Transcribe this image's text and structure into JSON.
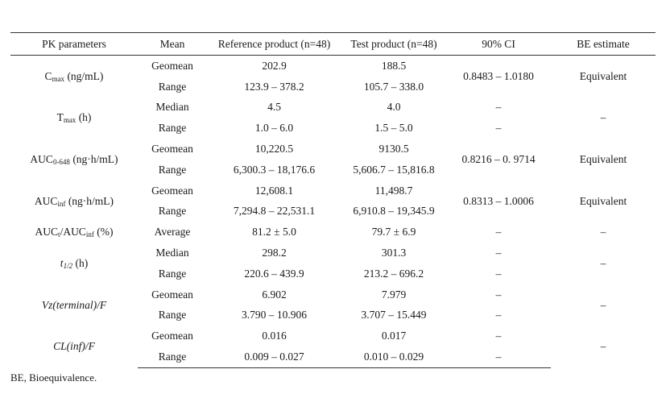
{
  "headers": [
    "PK parameters",
    "Mean",
    "Reference product (n=48)",
    "Test product (n=48)",
    "90% CI",
    "BE estimate"
  ],
  "params": {
    "cmax": {
      "main": "C",
      "sub": "max",
      "unit": " (ng/mL)"
    },
    "tmax": {
      "main": "T",
      "sub": "max",
      "unit": " (h)"
    },
    "auc648": {
      "main": "AUC",
      "sub": "0-648",
      "unit": " (ng·h/mL)"
    },
    "aucinf": {
      "main": "AUC",
      "sub": "inf",
      "unit": " (ng·h/mL)"
    },
    "ratio": {
      "main": "AUC",
      "sub": "t",
      "mid": "/AUC",
      "sub2": "inf",
      "unit": " (%)"
    },
    "thalf": {
      "main": "t",
      "sub": "1/2",
      "unit": " (h)"
    },
    "vz": {
      "label": "Vz(terminal)/F"
    },
    "cl": {
      "label": "CL(inf)/F"
    }
  },
  "rows": {
    "cmax_geo": {
      "mean": "Geomean",
      "ref": "202.9",
      "test": "188.5"
    },
    "cmax_range": {
      "mean": "Range",
      "ref": "123.9 – 378.2",
      "test": "105.7 – 338.0"
    },
    "cmax": {
      "ci": "0.8483 – 1.0180",
      "be": "Equivalent"
    },
    "tmax_med": {
      "mean": "Median",
      "ref": "4.5",
      "test": "4.0",
      "ci": "–"
    },
    "tmax_range": {
      "mean": "Range",
      "ref": "1.0 – 6.0",
      "test": "1.5 – 5.0",
      "ci": "–"
    },
    "tmax": {
      "be": "–"
    },
    "auc648_geo": {
      "mean": "Geomean",
      "ref": "10,220.5",
      "test": "9130.5"
    },
    "auc648_range": {
      "mean": "Range",
      "ref": "6,300.3 – 18,176.6",
      "test": "5,606.7 – 15,816.8"
    },
    "auc648": {
      "ci": "0.8216 – 0. 9714",
      "be": "Equivalent"
    },
    "aucinf_geo": {
      "mean": "Geomean",
      "ref": "12,608.1",
      "test": "11,498.7"
    },
    "aucinf_range": {
      "mean": "Range",
      "ref": "7,294.8 – 22,531.1",
      "test": "6,910.8 – 19,345.9"
    },
    "aucinf": {
      "ci": "0.8313 – 1.0006",
      "be": "Equivalent"
    },
    "ratio": {
      "mean": "Average",
      "ref": "81.2 ± 5.0",
      "test": "79.7 ± 6.9",
      "ci": "–",
      "be": "–"
    },
    "thalf_med": {
      "mean": "Median",
      "ref": "298.2",
      "test": "301.3",
      "ci": "–"
    },
    "thalf_range": {
      "mean": "Range",
      "ref": "220.6 – 439.9",
      "test": "213.2 – 696.2",
      "ci": "–"
    },
    "thalf": {
      "be": "–"
    },
    "vz_geo": {
      "mean": "Geomean",
      "ref": "6.902",
      "test": "7.979",
      "ci": "–"
    },
    "vz_range": {
      "mean": "Range",
      "ref": "3.790 – 10.906",
      "test": "3.707 – 15.449",
      "ci": "–"
    },
    "vz": {
      "be": "–"
    },
    "cl_geo": {
      "mean": "Geomean",
      "ref": "0.016",
      "test": "0.017",
      "ci": "–"
    },
    "cl_range": {
      "mean": "Range",
      "ref": "0.009 – 0.027",
      "test": "0.010 – 0.029",
      "ci": "–"
    },
    "cl": {
      "be": "–"
    }
  },
  "footnote": "BE, Bioequivalence."
}
